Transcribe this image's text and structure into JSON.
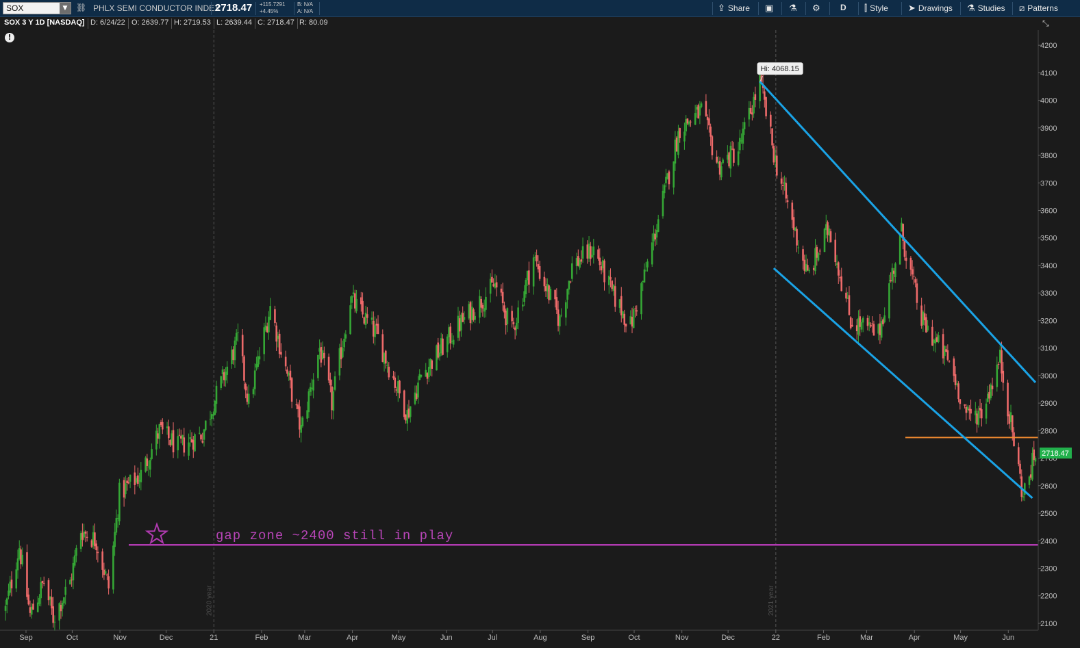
{
  "toolbar": {
    "symbol": "SOX",
    "description": "PHLX SEMI CONDUCTOR INDEX",
    "last": "2718.47",
    "change_abs": "+115.7291",
    "change_pct": "+4.45%",
    "bid": "B: N/A",
    "ask": "A: N/A",
    "share": "Share",
    "aggregation": "D",
    "style": "Style",
    "drawings": "Drawings",
    "studies": "Studies",
    "patterns": "Patterns"
  },
  "info": {
    "title": "SOX 3 Y 1D [NASDAQ]",
    "date": "D: 6/24/22",
    "open": "O: 2639.77",
    "high": "H: 2719.53",
    "low": "L: 2639.44",
    "close": "C: 2718.47",
    "range": "R: 80.09"
  },
  "icons": {
    "symbol_dropdown": "chevron-down-icon",
    "link": "link-icon",
    "share": "share-icon",
    "flexible_grid": "grid-icon",
    "lab": "beaker-icon",
    "settings": "gear-icon",
    "style": "candle-style-icon",
    "drawings": "cursor-icon",
    "studies": "flask-icon",
    "patterns": "pattern-icon",
    "alert": "exclamation-icon",
    "collapse": "collapse-arrows-icon"
  },
  "chart_data": {
    "type": "candlestick",
    "up_color": "#35a735",
    "down_color": "#ee6a6a",
    "y_ticks": [
      2100,
      2200,
      2300,
      2400,
      2500,
      2600,
      2700,
      2800,
      2900,
      3000,
      3100,
      3200,
      3300,
      3400,
      3500,
      3600,
      3700,
      3800,
      3900,
      4000,
      4100,
      4200
    ],
    "ylim": [
      2075,
      4255
    ],
    "x_labels": [
      "Sep",
      "Oct",
      "Nov",
      "Dec",
      "21",
      "Feb",
      "Mar",
      "Apr",
      "May",
      "Jun",
      "Jul",
      "Aug",
      "Sep",
      "Oct",
      "Nov",
      "Dec",
      "22",
      "Feb",
      "Mar",
      "Apr",
      "May",
      "Jun"
    ],
    "year_markers": [
      "2020 year",
      "2021 year"
    ],
    "last_price_tag": "2718.47",
    "high_bubble": "Hi: 4068.15",
    "annotation": "gap zone ~2400 still in play",
    "horizontal_lines": [
      {
        "level": 2385,
        "color": "#b03ab0"
      },
      {
        "level": 2775,
        "color": "#f08a30"
      }
    ],
    "trend_lines": [
      {
        "from": [
          "2021-12-27",
          4068
        ],
        "to": [
          "2022-06-24",
          2975
        ],
        "color": "#1aa3e6"
      },
      {
        "from": [
          "2022-01-05",
          3390
        ],
        "to": [
          "2022-06-22",
          2555
        ],
        "color": "#1aa3e6"
      }
    ],
    "price_path": [
      [
        "2020-08-24",
        2150
      ],
      [
        "2020-09-02",
        2380
      ],
      [
        "2020-09-09",
        2130
      ],
      [
        "2020-09-18",
        2250
      ],
      [
        "2020-09-24",
        2120
      ],
      [
        "2020-10-05",
        2250
      ],
      [
        "2020-10-12",
        2440
      ],
      [
        "2020-10-22",
        2400
      ],
      [
        "2020-10-30",
        2230
      ],
      [
        "2020-11-06",
        2570
      ],
      [
        "2020-11-20",
        2640
      ],
      [
        "2020-12-02",
        2800
      ],
      [
        "2020-12-14",
        2740
      ],
      [
        "2020-12-30",
        2790
      ],
      [
        "2021-01-06",
        2900
      ],
      [
        "2021-01-22",
        3130
      ],
      [
        "2021-01-29",
        2900
      ],
      [
        "2021-02-12",
        3250
      ],
      [
        "2021-03-04",
        2800
      ],
      [
        "2021-03-16",
        3100
      ],
      [
        "2021-03-24",
        2900
      ],
      [
        "2021-04-05",
        3280
      ],
      [
        "2021-04-22",
        3150
      ],
      [
        "2021-05-12",
        2860
      ],
      [
        "2021-05-21",
        3000
      ],
      [
        "2021-06-14",
        3180
      ],
      [
        "2021-07-08",
        3330
      ],
      [
        "2021-07-19",
        3160
      ],
      [
        "2021-08-02",
        3430
      ],
      [
        "2021-08-19",
        3200
      ],
      [
        "2021-08-27",
        3400
      ],
      [
        "2021-09-10",
        3460
      ],
      [
        "2021-09-22",
        3300
      ],
      [
        "2021-10-04",
        3180
      ],
      [
        "2021-10-14",
        3380
      ],
      [
        "2021-11-05",
        3900
      ],
      [
        "2021-11-19",
        3960
      ],
      [
        "2021-11-30",
        3760
      ],
      [
        "2021-12-13",
        3820
      ],
      [
        "2021-12-27",
        4068
      ],
      [
        "2022-01-06",
        3780
      ],
      [
        "2022-01-27",
        3360
      ],
      [
        "2022-02-10",
        3540
      ],
      [
        "2022-02-24",
        3200
      ],
      [
        "2022-03-14",
        3150
      ],
      [
        "2022-03-29",
        3520
      ],
      [
        "2022-04-11",
        3200
      ],
      [
        "2022-04-29",
        3050
      ],
      [
        "2022-05-11",
        2850
      ],
      [
        "2022-05-20",
        2870
      ],
      [
        "2022-06-01",
        3060
      ],
      [
        "2022-06-16",
        2560
      ],
      [
        "2022-06-24",
        2718
      ]
    ]
  }
}
